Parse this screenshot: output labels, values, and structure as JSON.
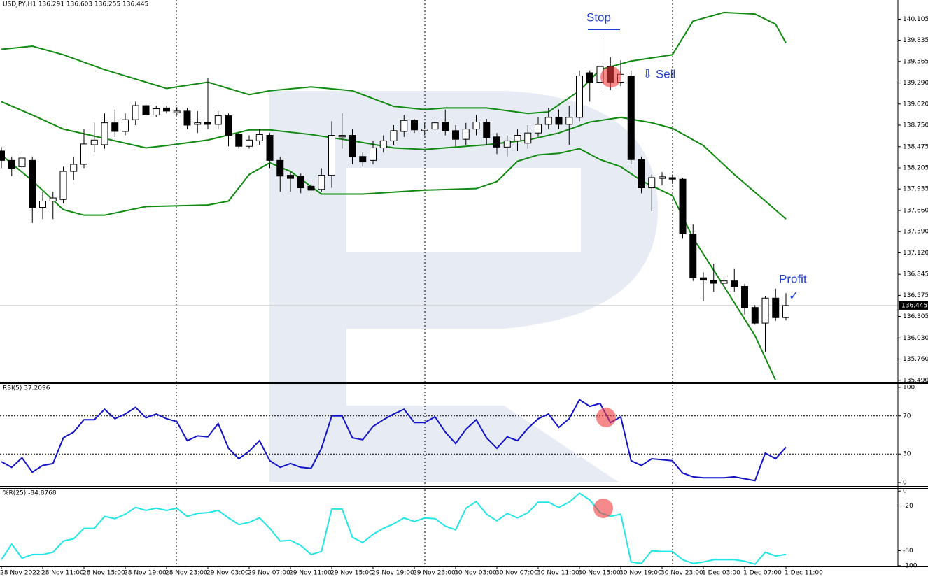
{
  "chart_data": [
    {
      "type": "candlestick",
      "title": "USDJPY,H1  136.291 136.603 136.255 136.445",
      "categories": [
        "28 Nov 2022",
        null,
        null,
        null,
        "28 Nov 11:00",
        null,
        null,
        null,
        "28 Nov 15:00",
        null,
        null,
        null,
        "28 Nov 19:00",
        null,
        null,
        null,
        "28 Nov 23:00",
        null,
        null,
        null,
        "29 Nov 03:00",
        null,
        null,
        null,
        "29 Nov 07:00",
        null,
        null,
        null,
        "29 Nov 11:00",
        null,
        null,
        null,
        "29 Nov 15:00",
        null,
        null,
        null,
        "29 Nov 19:00",
        null,
        null,
        null,
        "29 Nov 23:00",
        null,
        null,
        null,
        "30 Nov 03:00",
        null,
        null,
        null,
        "30 Nov 07:00",
        null,
        null,
        null,
        "30 Nov 11:00",
        null,
        null,
        null,
        "30 Nov 15:00",
        null,
        null,
        null,
        "30 Nov 19:00",
        null,
        null,
        null,
        "30 Nov 23:00",
        null,
        null,
        null,
        "1 Dec 03:00",
        null,
        null,
        null,
        "1 Dec 07:00",
        null,
        null,
        null,
        "1 Dec 11:00"
      ],
      "open": [
        138.42,
        138.3,
        138.22,
        138.3,
        137.7,
        137.78,
        137.8,
        138.16,
        138.25,
        138.5,
        138.5,
        138.78,
        138.67,
        138.82,
        139.0,
        138.88,
        138.97,
        138.91,
        138.93,
        138.76,
        138.79,
        138.76,
        138.87,
        138.63,
        138.48,
        138.55,
        138.62,
        138.3,
        138.11,
        138.1,
        137.97,
        137.93,
        138.11,
        138.6,
        138.62,
        138.35,
        138.3,
        138.46,
        138.55,
        138.67,
        138.81,
        138.68,
        138.7,
        138.79,
        138.68,
        138.57,
        138.7,
        138.79,
        138.6,
        138.47,
        138.55,
        138.52,
        138.65,
        138.76,
        138.85,
        138.76,
        138.85,
        139.42,
        139.3,
        139.5,
        139.3,
        139.38,
        138.31,
        137.95,
        138.07,
        138.08,
        138.06,
        137.36,
        136.8,
        136.77,
        136.73,
        136.76,
        136.69,
        136.42,
        136.22,
        136.54,
        136.291
      ],
      "high": [
        138.47,
        138.35,
        138.38,
        138.35,
        137.9,
        137.9,
        138.22,
        138.35,
        138.7,
        138.78,
        138.9,
        138.95,
        138.9,
        139.05,
        139.03,
        139.0,
        139.0,
        138.98,
        138.97,
        138.93,
        139.35,
        138.93,
        138.9,
        138.66,
        138.62,
        138.7,
        138.65,
        138.35,
        138.15,
        138.13,
        138.0,
        138.2,
        138.8,
        138.9,
        138.7,
        138.4,
        138.55,
        138.62,
        138.75,
        138.88,
        138.83,
        138.78,
        138.83,
        138.95,
        138.75,
        138.78,
        138.88,
        138.83,
        138.65,
        138.62,
        138.7,
        138.75,
        138.85,
        138.97,
        138.95,
        139.0,
        139.45,
        139.45,
        139.9,
        139.62,
        139.58,
        139.45,
        138.35,
        138.12,
        138.15,
        138.12,
        138.08,
        137.48,
        136.87,
        136.98,
        136.82,
        136.92,
        136.72,
        136.45,
        136.56,
        136.66,
        136.603
      ],
      "low": [
        138.2,
        138.1,
        138.1,
        137.5,
        137.55,
        137.55,
        137.75,
        138.05,
        138.2,
        138.4,
        138.45,
        138.6,
        138.62,
        138.75,
        138.85,
        138.85,
        138.9,
        138.88,
        138.7,
        138.65,
        138.7,
        138.7,
        138.48,
        138.45,
        138.45,
        138.5,
        138.2,
        137.9,
        137.9,
        137.88,
        137.87,
        137.9,
        137.95,
        138.45,
        138.25,
        138.22,
        138.25,
        138.4,
        138.5,
        138.6,
        138.65,
        138.62,
        138.65,
        138.62,
        138.48,
        138.5,
        138.62,
        138.5,
        138.38,
        138.35,
        138.42,
        138.45,
        138.6,
        138.7,
        138.7,
        138.5,
        138.8,
        139.05,
        139.2,
        139.2,
        139.25,
        138.25,
        137.88,
        137.65,
        137.98,
        138.0,
        137.3,
        136.76,
        136.5,
        136.62,
        136.68,
        136.62,
        136.33,
        136.2,
        135.85,
        136.25,
        136.255
      ],
      "close": [
        138.3,
        138.2,
        138.33,
        137.7,
        137.78,
        137.82,
        138.16,
        138.25,
        138.51,
        138.56,
        138.78,
        138.67,
        138.82,
        139.0,
        138.88,
        138.96,
        138.93,
        138.93,
        138.75,
        138.78,
        138.76,
        138.87,
        138.62,
        138.48,
        138.56,
        138.63,
        138.3,
        138.1,
        138.07,
        137.95,
        137.92,
        138.11,
        138.62,
        138.62,
        138.35,
        138.28,
        138.46,
        138.55,
        138.68,
        138.81,
        138.69,
        138.7,
        138.78,
        138.68,
        138.57,
        138.7,
        138.79,
        138.59,
        138.47,
        138.55,
        138.62,
        138.65,
        138.76,
        138.85,
        138.76,
        138.85,
        139.38,
        139.3,
        139.5,
        139.3,
        139.4,
        138.31,
        137.95,
        138.08,
        138.09,
        138.06,
        137.36,
        136.8,
        136.77,
        136.73,
        136.76,
        136.69,
        136.42,
        136.22,
        136.54,
        136.29,
        136.445
      ],
      "series": [
        {
          "color": "#118a11",
          "x": [
            0,
            3,
            6,
            10,
            14,
            16,
            20,
            24,
            26,
            30,
            34,
            38,
            41,
            43,
            47,
            51,
            53,
            56,
            58,
            61,
            65,
            67,
            70,
            73,
            75,
            76
          ],
          "values": [
            139.72,
            139.76,
            139.65,
            139.46,
            139.3,
            139.22,
            139.3,
            139.14,
            139.19,
            139.24,
            139.19,
            138.99,
            138.95,
            138.97,
            138.97,
            138.9,
            138.92,
            139.19,
            139.46,
            139.57,
            139.65,
            140.08,
            140.19,
            140.17,
            140.04,
            139.8
          ]
        },
        {
          "color": "#118a11",
          "x": [
            0,
            3,
            6,
            10,
            14,
            16,
            20,
            24,
            26,
            30,
            34,
            38,
            41,
            44,
            47,
            51,
            54,
            57,
            60,
            63,
            65,
            68,
            71,
            74,
            76
          ],
          "values": [
            139.05,
            138.88,
            138.7,
            138.58,
            138.46,
            138.49,
            138.56,
            138.69,
            138.69,
            138.63,
            138.55,
            138.46,
            138.44,
            138.47,
            138.5,
            138.56,
            138.65,
            138.79,
            138.85,
            138.78,
            138.71,
            138.49,
            138.12,
            137.78,
            137.55
          ]
        },
        {
          "color": "#118a11",
          "x": [
            0,
            3,
            6,
            8,
            10,
            14,
            20,
            22,
            24,
            26,
            28,
            31,
            35,
            41,
            46,
            48,
            50,
            52,
            54,
            56,
            58,
            60,
            62,
            65,
            67,
            70,
            73,
            75
          ],
          "values": [
            138.37,
            138.04,
            137.67,
            137.6,
            137.6,
            137.71,
            137.73,
            137.78,
            138.12,
            138.27,
            138.16,
            137.87,
            137.87,
            137.92,
            137.94,
            138.03,
            138.29,
            138.37,
            138.39,
            138.45,
            138.31,
            138.22,
            138.04,
            137.85,
            137.31,
            136.69,
            136.06,
            135.49
          ]
        }
      ],
      "ylim": [
        135.47,
        140.35
      ],
      "yticks": [
        {
          "value": 140.105,
          "label": "140.105"
        },
        {
          "value": 139.835,
          "label": "139.835"
        },
        {
          "value": 139.565,
          "label": "139.565"
        },
        {
          "value": 139.29,
          "label": "139.290"
        },
        {
          "value": 139.02,
          "label": "139.020"
        },
        {
          "value": 138.75,
          "label": "138.750"
        },
        {
          "value": 138.475,
          "label": "138.475"
        },
        {
          "value": 138.205,
          "label": "138.205"
        },
        {
          "value": 137.935,
          "label": "137.935"
        },
        {
          "value": 137.66,
          "label": "137.660"
        },
        {
          "value": 137.39,
          "label": "137.390"
        },
        {
          "value": 137.12,
          "label": "137.120"
        },
        {
          "value": 136.845,
          "label": "136.845"
        },
        {
          "value": 136.575,
          "label": "136.575"
        },
        {
          "value": 136.305,
          "label": "136.305"
        },
        {
          "value": 136.03,
          "label": "136.030"
        },
        {
          "value": 135.76,
          "label": "135.760"
        },
        {
          "value": 135.49,
          "label": "135.490"
        }
      ],
      "current_price": {
        "value": 136.445,
        "label": "136.445"
      },
      "annotations": [
        "Stop",
        "⇩ Sell",
        "Profit",
        "✓"
      ]
    },
    {
      "type": "line",
      "title": "RSI(5) 37.2096",
      "color": "#1414c8",
      "values": [
        22,
        16,
        26,
        11,
        18,
        20,
        47,
        53,
        66,
        66,
        77,
        67,
        72,
        79,
        68,
        72,
        67,
        64,
        44,
        49,
        48,
        62,
        36,
        25,
        33,
        44,
        23,
        16,
        20,
        16,
        15,
        36,
        70,
        70,
        47,
        45,
        59,
        66,
        72,
        77,
        63,
        63,
        69,
        53,
        41,
        56,
        66,
        47,
        36,
        48,
        44,
        57,
        67,
        72,
        58,
        67,
        87,
        80,
        83,
        63,
        69,
        23,
        18,
        25,
        24,
        23,
        10,
        6,
        5,
        5,
        5,
        6,
        4,
        2,
        31,
        25,
        37.2096
      ],
      "ylim": [
        -3.6,
        103.6
      ],
      "yticks": [
        100,
        70,
        30,
        0
      ],
      "levels": [
        70,
        30
      ]
    },
    {
      "type": "line",
      "title": "%R(25) -84.8768",
      "color": "#22e6e6",
      "values": [
        -92,
        -71,
        -90,
        -85,
        -85,
        -82,
        -67,
        -64,
        -50,
        -50,
        -34,
        -37,
        -31,
        -22,
        -26,
        -23,
        -26,
        -23,
        -34,
        -30,
        -29,
        -26,
        -36,
        -45,
        -42,
        -36,
        -50,
        -67,
        -66,
        -73,
        -85,
        -81,
        -24,
        -24,
        -62,
        -69,
        -58,
        -50,
        -44,
        -36,
        -41,
        -36,
        -37,
        -47,
        -52,
        -23,
        -14,
        -31,
        -40,
        -30,
        -36,
        -29,
        -15,
        -15,
        -22,
        -15,
        -3,
        -12,
        -29,
        -34,
        -31,
        -95,
        -97,
        -80,
        -81,
        -81,
        -92,
        -97,
        -95,
        -92,
        -92,
        -92,
        -94,
        -98,
        -82,
        -87,
        -84.8768
      ],
      "ylim": [
        -101,
        3
      ],
      "yticks": [
        0,
        -20,
        -80,
        -100
      ]
    }
  ]
}
